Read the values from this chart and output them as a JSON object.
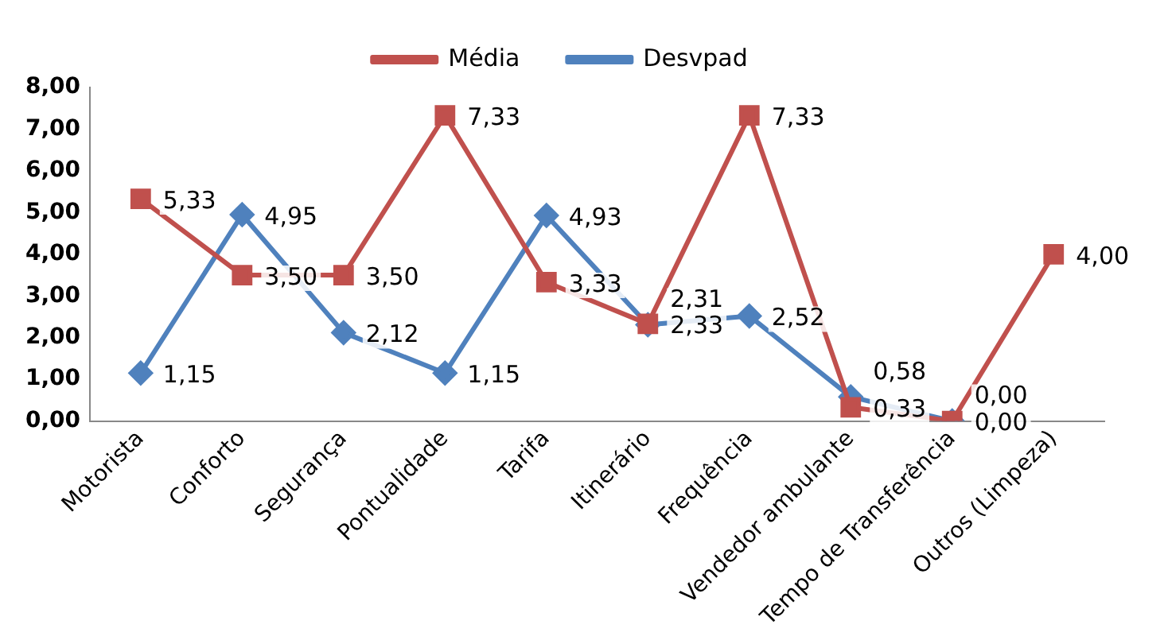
{
  "chart_data": {
    "type": "line",
    "categories": [
      "Motorista",
      "Conforto",
      "Segurança",
      "Pontualidade",
      "Tarifa",
      "Itinerário",
      "Frequência",
      "Vendedor ambulante",
      "Tempo de Transferência",
      "Outros (Limpeza)"
    ],
    "series": [
      {
        "name": "Média",
        "color": "#c0504d",
        "marker": "square",
        "values": [
          5.33,
          3.5,
          3.5,
          7.33,
          3.33,
          2.33,
          7.33,
          0.33,
          0,
          4
        ],
        "value_labels": [
          "5,33",
          "3,50",
          "3,50",
          "7,33",
          "3,33",
          "2,33",
          "7,33",
          "0,33",
          "0,00",
          "4,00"
        ]
      },
      {
        "name": "Desvpad",
        "color": "#4f81bd",
        "marker": "diamond",
        "values": [
          1.15,
          4.95,
          2.12,
          1.15,
          4.93,
          2.31,
          2.52,
          0.58,
          0,
          null
        ],
        "value_labels": [
          "1,15",
          "4,95",
          "2,12",
          "1,15",
          "4,93",
          "2,31",
          "2,52",
          "0,58",
          "0,00",
          null
        ]
      }
    ],
    "ylim": [
      0,
      8
    ],
    "yticks": [
      {
        "value": 0,
        "label": "0,00"
      },
      {
        "value": 1,
        "label": "1,00"
      },
      {
        "value": 2,
        "label": "2,00"
      },
      {
        "value": 3,
        "label": "3,00"
      },
      {
        "value": 4,
        "label": "4,00"
      },
      {
        "value": 5,
        "label": "5,00"
      },
      {
        "value": 6,
        "label": "6,00"
      },
      {
        "value": 7,
        "label": "7,00"
      },
      {
        "value": 8,
        "label": "8,00"
      }
    ],
    "grid": false,
    "legend": "top"
  }
}
